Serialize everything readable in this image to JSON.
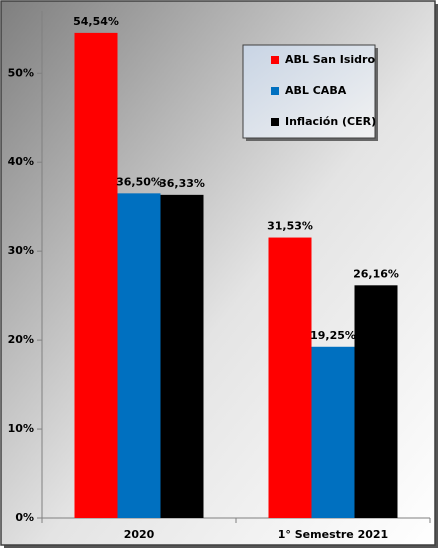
{
  "chart_data": {
    "type": "bar",
    "categories": [
      "2020",
      "1° Semestre 2021"
    ],
    "series": [
      {
        "name": "ABL San Isidro",
        "color": "#ff0000",
        "values": [
          54.54,
          31.53
        ],
        "value_labels": [
          "54,54%",
          "31,53%"
        ]
      },
      {
        "name": "ABL CABA",
        "color": "#0070c0",
        "values": [
          36.5,
          19.25
        ],
        "value_labels": [
          "36,50%",
          "19,25%"
        ]
      },
      {
        "name": "Inflación (CER)",
        "color": "#000000",
        "values": [
          36.33,
          26.16
        ],
        "value_labels": [
          "36,33%",
          "26,16%"
        ]
      }
    ],
    "ylim": [
      0,
      57
    ],
    "yticks": [
      {
        "value": 0,
        "label": "0%"
      },
      {
        "value": 10,
        "label": "10%"
      },
      {
        "value": 20,
        "label": "20%"
      },
      {
        "value": 30,
        "label": "30%"
      },
      {
        "value": 40,
        "label": "40%"
      },
      {
        "value": 50,
        "label": "50%"
      }
    ],
    "grid": false,
    "legend": "upper-right"
  }
}
